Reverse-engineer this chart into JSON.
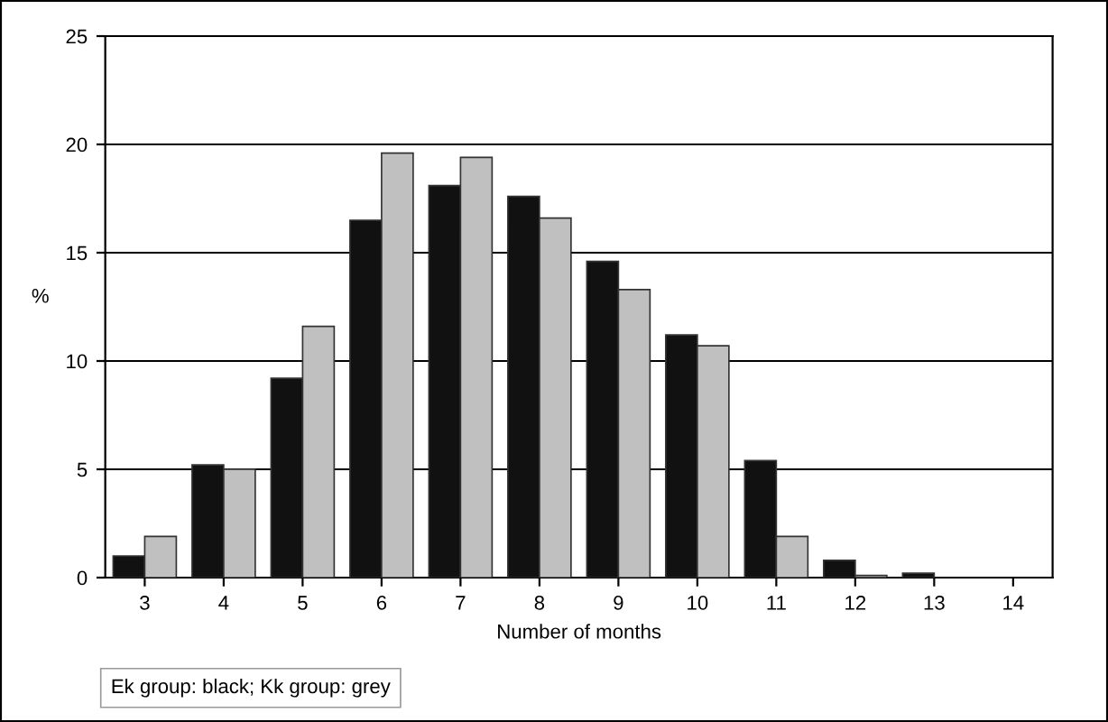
{
  "chart_data": {
    "type": "bar",
    "xlabel": "Number of months",
    "ylabel": "%",
    "categories": [
      "3",
      "4",
      "5",
      "6",
      "7",
      "8",
      "9",
      "10",
      "11",
      "12",
      "13",
      "14"
    ],
    "series": [
      {
        "color": "#111111",
        "values": [
          1.0,
          5.2,
          9.2,
          16.5,
          18.1,
          17.6,
          14.6,
          11.2,
          5.4,
          0.8,
          0.2,
          0
        ]
      },
      {
        "color": "#c0c0c0",
        "values": [
          1.9,
          5.0,
          11.6,
          19.6,
          19.4,
          16.6,
          13.3,
          10.7,
          1.9,
          0.1,
          0,
          0
        ]
      }
    ],
    "ylim": [
      0,
      25
    ],
    "yticks": [
      0,
      5,
      10,
      15,
      20,
      25
    ],
    "grid": "y",
    "legend": false,
    "annotations": [
      "Ek group: black; Kk group: grey"
    ]
  }
}
